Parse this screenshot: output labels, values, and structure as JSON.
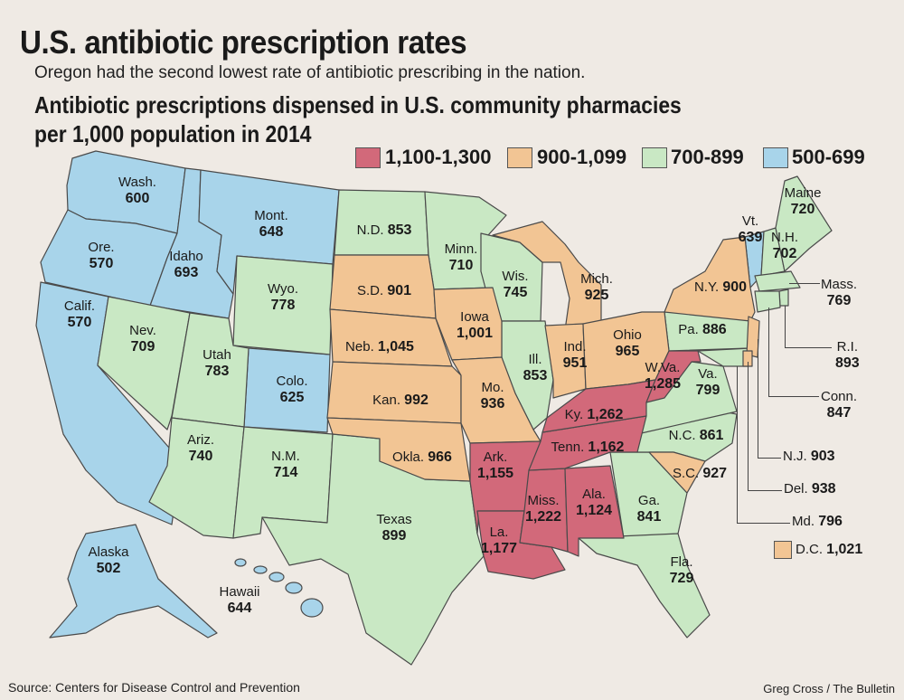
{
  "title": "U.S. antibiotic prescription rates",
  "subtitle": "Oregon had the second lowest rate of antibiotic prescribing in the nation.",
  "heading_line1": "Antibiotic prescriptions dispensed in U.S. community pharmacies",
  "heading_line2": "per 1,000 population in 2014",
  "colors": {
    "high": "#d2697a",
    "mid_high": "#f2c594",
    "mid_low": "#c9e8c4",
    "low": "#a8d4ea",
    "background": "#efeae4"
  },
  "legend": [
    {
      "label": "1,100-1,300",
      "color": "#d2697a"
    },
    {
      "label": "900-1,099",
      "color": "#f2c594"
    },
    {
      "label": "700-899",
      "color": "#c9e8c4"
    },
    {
      "label": "500-699",
      "color": "#a8d4ea"
    }
  ],
  "states": {
    "wash": {
      "name": "Wash.",
      "value": "600"
    },
    "ore": {
      "name": "Ore.",
      "value": "570"
    },
    "calif": {
      "name": "Calif.",
      "value": "570"
    },
    "idaho": {
      "name": "Idaho",
      "value": "693"
    },
    "mont": {
      "name": "Mont.",
      "value": "648"
    },
    "wyo": {
      "name": "Wyo.",
      "value": "778"
    },
    "nev": {
      "name": "Nev.",
      "value": "709"
    },
    "utah": {
      "name": "Utah",
      "value": "783"
    },
    "colo": {
      "name": "Colo.",
      "value": "625"
    },
    "ariz": {
      "name": "Ariz.",
      "value": "740"
    },
    "nm": {
      "name": "N.M.",
      "value": "714"
    },
    "nd": {
      "name": "N.D.",
      "value": "853"
    },
    "sd": {
      "name": "S.D.",
      "value": "901"
    },
    "neb": {
      "name": "Neb.",
      "value": "1,045"
    },
    "kan": {
      "name": "Kan.",
      "value": "992"
    },
    "okla": {
      "name": "Okla.",
      "value": "966"
    },
    "texas": {
      "name": "Texas",
      "value": "899"
    },
    "minn": {
      "name": "Minn.",
      "value": "710"
    },
    "iowa": {
      "name": "Iowa",
      "value": "1,001"
    },
    "mo": {
      "name": "Mo.",
      "value": "936"
    },
    "ark": {
      "name": "Ark.",
      "value": "1,155"
    },
    "la": {
      "name": "La.",
      "value": "1,177"
    },
    "wis": {
      "name": "Wis.",
      "value": "745"
    },
    "ill": {
      "name": "Ill.",
      "value": "853"
    },
    "mich": {
      "name": "Mich.",
      "value": "925"
    },
    "ind": {
      "name": "Ind.",
      "value": "951"
    },
    "ohio": {
      "name": "Ohio",
      "value": "965"
    },
    "ky": {
      "name": "Ky.",
      "value": "1,262"
    },
    "tenn": {
      "name": "Tenn.",
      "value": "1,162"
    },
    "miss": {
      "name": "Miss.",
      "value": "1,222"
    },
    "ala": {
      "name": "Ala.",
      "value": "1,124"
    },
    "ga": {
      "name": "Ga.",
      "value": "841"
    },
    "fla": {
      "name": "Fla.",
      "value": "729"
    },
    "sc": {
      "name": "S.C.",
      "value": "927"
    },
    "nc": {
      "name": "N.C.",
      "value": "861"
    },
    "va": {
      "name": "Va.",
      "value": "799"
    },
    "wva": {
      "name": "W.Va.",
      "value": "1,285"
    },
    "pa": {
      "name": "Pa.",
      "value": "886"
    },
    "ny": {
      "name": "N.Y.",
      "value": "900"
    },
    "vt": {
      "name": "Vt.",
      "value": "639"
    },
    "nh": {
      "name": "N.H.",
      "value": "702"
    },
    "maine": {
      "name": "Maine",
      "value": "720"
    },
    "mass": {
      "name": "Mass.",
      "value": "769"
    },
    "ri": {
      "name": "R.I.",
      "value": "893"
    },
    "conn": {
      "name": "Conn.",
      "value": "847"
    },
    "nj": {
      "name": "N.J.",
      "value": "903"
    },
    "del": {
      "name": "Del.",
      "value": "938"
    },
    "md": {
      "name": "Md.",
      "value": "796"
    },
    "dc": {
      "name": "D.C.",
      "value": "1,021"
    },
    "alaska": {
      "name": "Alaska",
      "value": "502"
    },
    "hawaii": {
      "name": "Hawaii",
      "value": "644"
    }
  },
  "source": "Source: Centers for Disease Control and Prevention",
  "credit": "Greg Cross / The Bulletin"
}
